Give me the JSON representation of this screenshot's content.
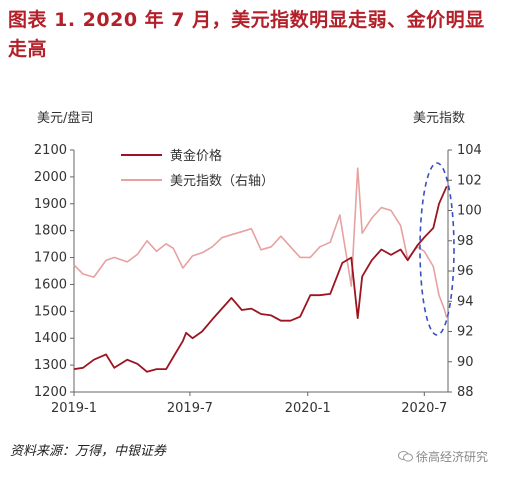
{
  "figure": {
    "title_line1": "图表 1. 2020 年 7 月，美元指数明显走弱、金价明显",
    "title_line2": "走高",
    "source": "资料来源：万得，中银证券",
    "watermark": "徐高经济研究"
  },
  "colors": {
    "gold": "#9c1420",
    "dxy": "#e8a1a1",
    "highlight": "#3a4fc2",
    "title": "#b3202a"
  },
  "chart_data": {
    "type": "line",
    "left_axis_label": "美元/盘司",
    "right_axis_label": "美元指数",
    "left_ylim": [
      1200,
      2100
    ],
    "right_ylim": [
      88,
      104
    ],
    "left_ticks": [
      1200,
      1300,
      1400,
      1500,
      1600,
      1700,
      1800,
      1900,
      2000,
      2100
    ],
    "right_ticks": [
      88,
      90,
      92,
      94,
      96,
      98,
      100,
      102,
      104
    ],
    "x_range": [
      "2019-01-01",
      "2020-08-07"
    ],
    "x_ticks": [
      {
        "date": "2019-01-01",
        "label": "2019-1"
      },
      {
        "date": "2019-07-01",
        "label": "2019-7"
      },
      {
        "date": "2020-01-01",
        "label": "2020-1"
      },
      {
        "date": "2020-07-01",
        "label": "2020-7"
      }
    ],
    "grid": false,
    "legend_position": "top-left",
    "annotation": "dashed ellipse highlighting July 2020",
    "series": [
      {
        "name": "黄金价格",
        "axis": "left",
        "points": [
          [
            "2019-01-01",
            1285
          ],
          [
            "2019-01-15",
            1290
          ],
          [
            "2019-02-01",
            1320
          ],
          [
            "2019-02-20",
            1340
          ],
          [
            "2019-03-05",
            1290
          ],
          [
            "2019-03-25",
            1320
          ],
          [
            "2019-04-10",
            1305
          ],
          [
            "2019-04-25",
            1275
          ],
          [
            "2019-05-10",
            1285
          ],
          [
            "2019-05-25",
            1285
          ],
          [
            "2019-06-05",
            1330
          ],
          [
            "2019-06-20",
            1390
          ],
          [
            "2019-06-25",
            1420
          ],
          [
            "2019-07-05",
            1400
          ],
          [
            "2019-07-20",
            1425
          ],
          [
            "2019-08-05",
            1470
          ],
          [
            "2019-08-20",
            1510
          ],
          [
            "2019-09-04",
            1550
          ],
          [
            "2019-09-20",
            1505
          ],
          [
            "2019-10-05",
            1510
          ],
          [
            "2019-10-20",
            1490
          ],
          [
            "2019-11-05",
            1485
          ],
          [
            "2019-11-20",
            1465
          ],
          [
            "2019-12-05",
            1465
          ],
          [
            "2019-12-20",
            1480
          ],
          [
            "2020-01-05",
            1560
          ],
          [
            "2020-01-20",
            1560
          ],
          [
            "2020-02-05",
            1565
          ],
          [
            "2020-02-24",
            1680
          ],
          [
            "2020-03-09",
            1700
          ],
          [
            "2020-03-19",
            1475
          ],
          [
            "2020-03-26",
            1630
          ],
          [
            "2020-04-10",
            1690
          ],
          [
            "2020-04-25",
            1730
          ],
          [
            "2020-05-10",
            1710
          ],
          [
            "2020-05-25",
            1730
          ],
          [
            "2020-06-05",
            1690
          ],
          [
            "2020-06-20",
            1745
          ],
          [
            "2020-07-01",
            1775
          ],
          [
            "2020-07-15",
            1810
          ],
          [
            "2020-07-24",
            1900
          ],
          [
            "2020-08-05",
            1965
          ]
        ]
      },
      {
        "name": "美元指数（右轴）",
        "axis": "right",
        "points": [
          [
            "2019-01-01",
            96.4
          ],
          [
            "2019-01-15",
            95.8
          ],
          [
            "2019-02-01",
            95.6
          ],
          [
            "2019-02-20",
            96.7
          ],
          [
            "2019-03-05",
            96.9
          ],
          [
            "2019-03-25",
            96.6
          ],
          [
            "2019-04-10",
            97.1
          ],
          [
            "2019-04-25",
            98.0
          ],
          [
            "2019-05-10",
            97.3
          ],
          [
            "2019-05-25",
            97.8
          ],
          [
            "2019-06-05",
            97.5
          ],
          [
            "2019-06-20",
            96.2
          ],
          [
            "2019-07-05",
            97.0
          ],
          [
            "2019-07-20",
            97.2
          ],
          [
            "2019-08-05",
            97.6
          ],
          [
            "2019-08-20",
            98.2
          ],
          [
            "2019-09-04",
            98.4
          ],
          [
            "2019-09-20",
            98.6
          ],
          [
            "2019-10-05",
            98.8
          ],
          [
            "2019-10-20",
            97.4
          ],
          [
            "2019-11-05",
            97.6
          ],
          [
            "2019-11-20",
            98.3
          ],
          [
            "2019-12-05",
            97.6
          ],
          [
            "2019-12-20",
            96.9
          ],
          [
            "2020-01-05",
            96.9
          ],
          [
            "2020-01-20",
            97.6
          ],
          [
            "2020-02-05",
            97.9
          ],
          [
            "2020-02-20",
            99.7
          ],
          [
            "2020-03-09",
            95.0
          ],
          [
            "2020-03-19",
            102.8
          ],
          [
            "2020-03-26",
            98.5
          ],
          [
            "2020-04-10",
            99.5
          ],
          [
            "2020-04-25",
            100.2
          ],
          [
            "2020-05-10",
            100.0
          ],
          [
            "2020-05-25",
            99.0
          ],
          [
            "2020-06-05",
            96.8
          ],
          [
            "2020-06-20",
            97.6
          ],
          [
            "2020-07-01",
            97.3
          ],
          [
            "2020-07-15",
            96.3
          ],
          [
            "2020-07-24",
            94.4
          ],
          [
            "2020-08-01",
            93.5
          ],
          [
            "2020-08-05",
            92.9
          ]
        ]
      }
    ]
  }
}
